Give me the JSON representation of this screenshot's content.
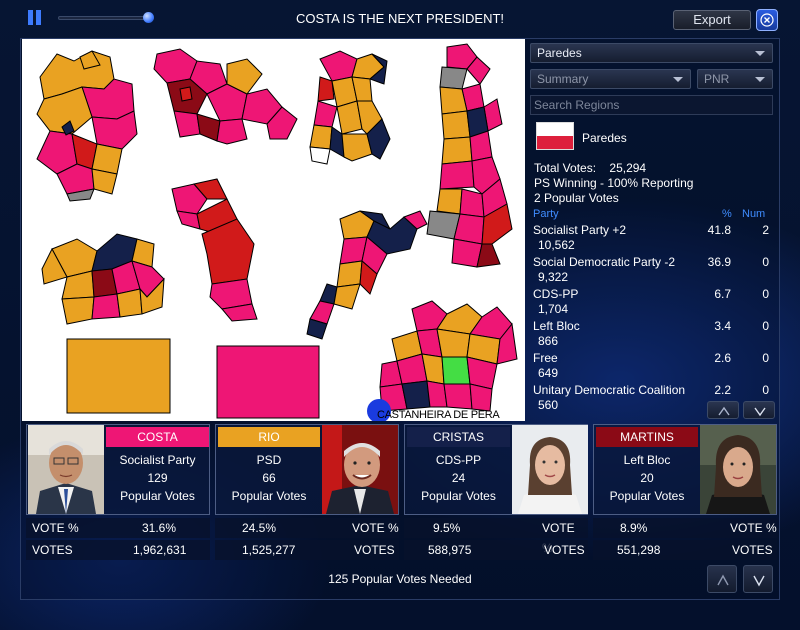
{
  "header": {
    "title": "COSTA IS THE NEXT PRESIDENT!",
    "export_label": "Export",
    "playback_progress": 0.9
  },
  "map": {
    "region_label": "CASTANHEIRA DE PERA"
  },
  "panel": {
    "region_select": "Paredes",
    "view_select": "Summary",
    "party_select": "PNR",
    "search_placeholder": "Search Regions",
    "region_name": "Paredes",
    "total_votes_label": "Total Votes:",
    "total_votes": "25,294",
    "winning_text": "PS Winning - 100% Reporting",
    "popular_votes_text": "2 Popular Votes",
    "col_party": "Party",
    "col_pct": "%",
    "col_num": "Num",
    "parties": [
      {
        "name": "Socialist Party +2",
        "pct": "41.8",
        "num": "2",
        "votes": "10,562"
      },
      {
        "name": "Social Democratic Party -2",
        "pct": "36.9",
        "num": "0",
        "votes": "9,322"
      },
      {
        "name": "CDS-PP",
        "pct": "6.7",
        "num": "0",
        "votes": "1,704"
      },
      {
        "name": "Left Bloc",
        "pct": "3.4",
        "num": "0",
        "votes": "866"
      },
      {
        "name": "Free",
        "pct": "2.6",
        "num": "0",
        "votes": "649"
      },
      {
        "name": "Unitary Democratic Coalition",
        "pct": "2.2",
        "num": "0",
        "votes": "560"
      }
    ]
  },
  "candidates": [
    {
      "name": "COSTA",
      "party": "Socialist Party",
      "count": "129",
      "pv_label": "Popular Votes",
      "vote_pct": "31.6%",
      "votes": "1,962,631",
      "color": "#ee1675"
    },
    {
      "name": "RIO",
      "party": "PSD",
      "count": "66",
      "pv_label": "Popular Votes",
      "vote_pct": "24.5%",
      "votes": "1,525,277",
      "color": "#e9a222"
    },
    {
      "name": "CRISTAS",
      "party": "CDS-PP",
      "count": "24",
      "pv_label": "Popular Votes",
      "vote_pct": "9.5%",
      "votes": "588,975",
      "color": "#14204a"
    },
    {
      "name": "MARTINS",
      "party": "Left Bloc",
      "count": "20",
      "pv_label": "Popular Votes",
      "vote_pct": "8.9%",
      "votes": "551,298",
      "color": "#8b0a16"
    }
  ],
  "vote_labels": {
    "vote_pct": "VOTE %",
    "votes": "VOTES"
  },
  "footer": {
    "needed_text": "125 Popular Votes Needed"
  },
  "colors": {
    "ps_pink": "#ee1675",
    "psd_orange": "#e9a222",
    "cds_navy": "#14204a",
    "be_darkred": "#8b0a16",
    "gray": "#888888",
    "red": "#d11a1a",
    "green": "#44dd44"
  }
}
